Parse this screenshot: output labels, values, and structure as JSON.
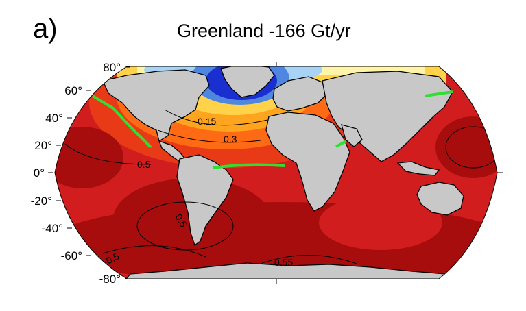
{
  "figure": {
    "panel_label": "a)",
    "title": "Greenland -166 Gt/yr"
  },
  "map": {
    "projection": "Robinson",
    "land_color": "#c8c8c8",
    "coastline_color": "#000000",
    "zero_line_color": "#33dd33",
    "latitude_labels": [
      "80°",
      "60°",
      "40°",
      "20°",
      "0°",
      "-20°",
      "-40°",
      "-60°",
      "-80°"
    ],
    "contour_labels": [
      "0.15",
      "0.3",
      "0.5",
      "0.5",
      "0.5",
      "0.55"
    ],
    "colors": {
      "very_negative": "#1a2fd0",
      "negative": "#4f86e0",
      "slightly_negative": "#a8d3f5",
      "near_zero": "#fff4a8",
      "low": "#ffd24a",
      "low_mid": "#ffa41e",
      "mid": "#ff6a14",
      "mid_high": "#e83a16",
      "high": "#d11d1d",
      "very_high": "#a80d0d"
    }
  }
}
